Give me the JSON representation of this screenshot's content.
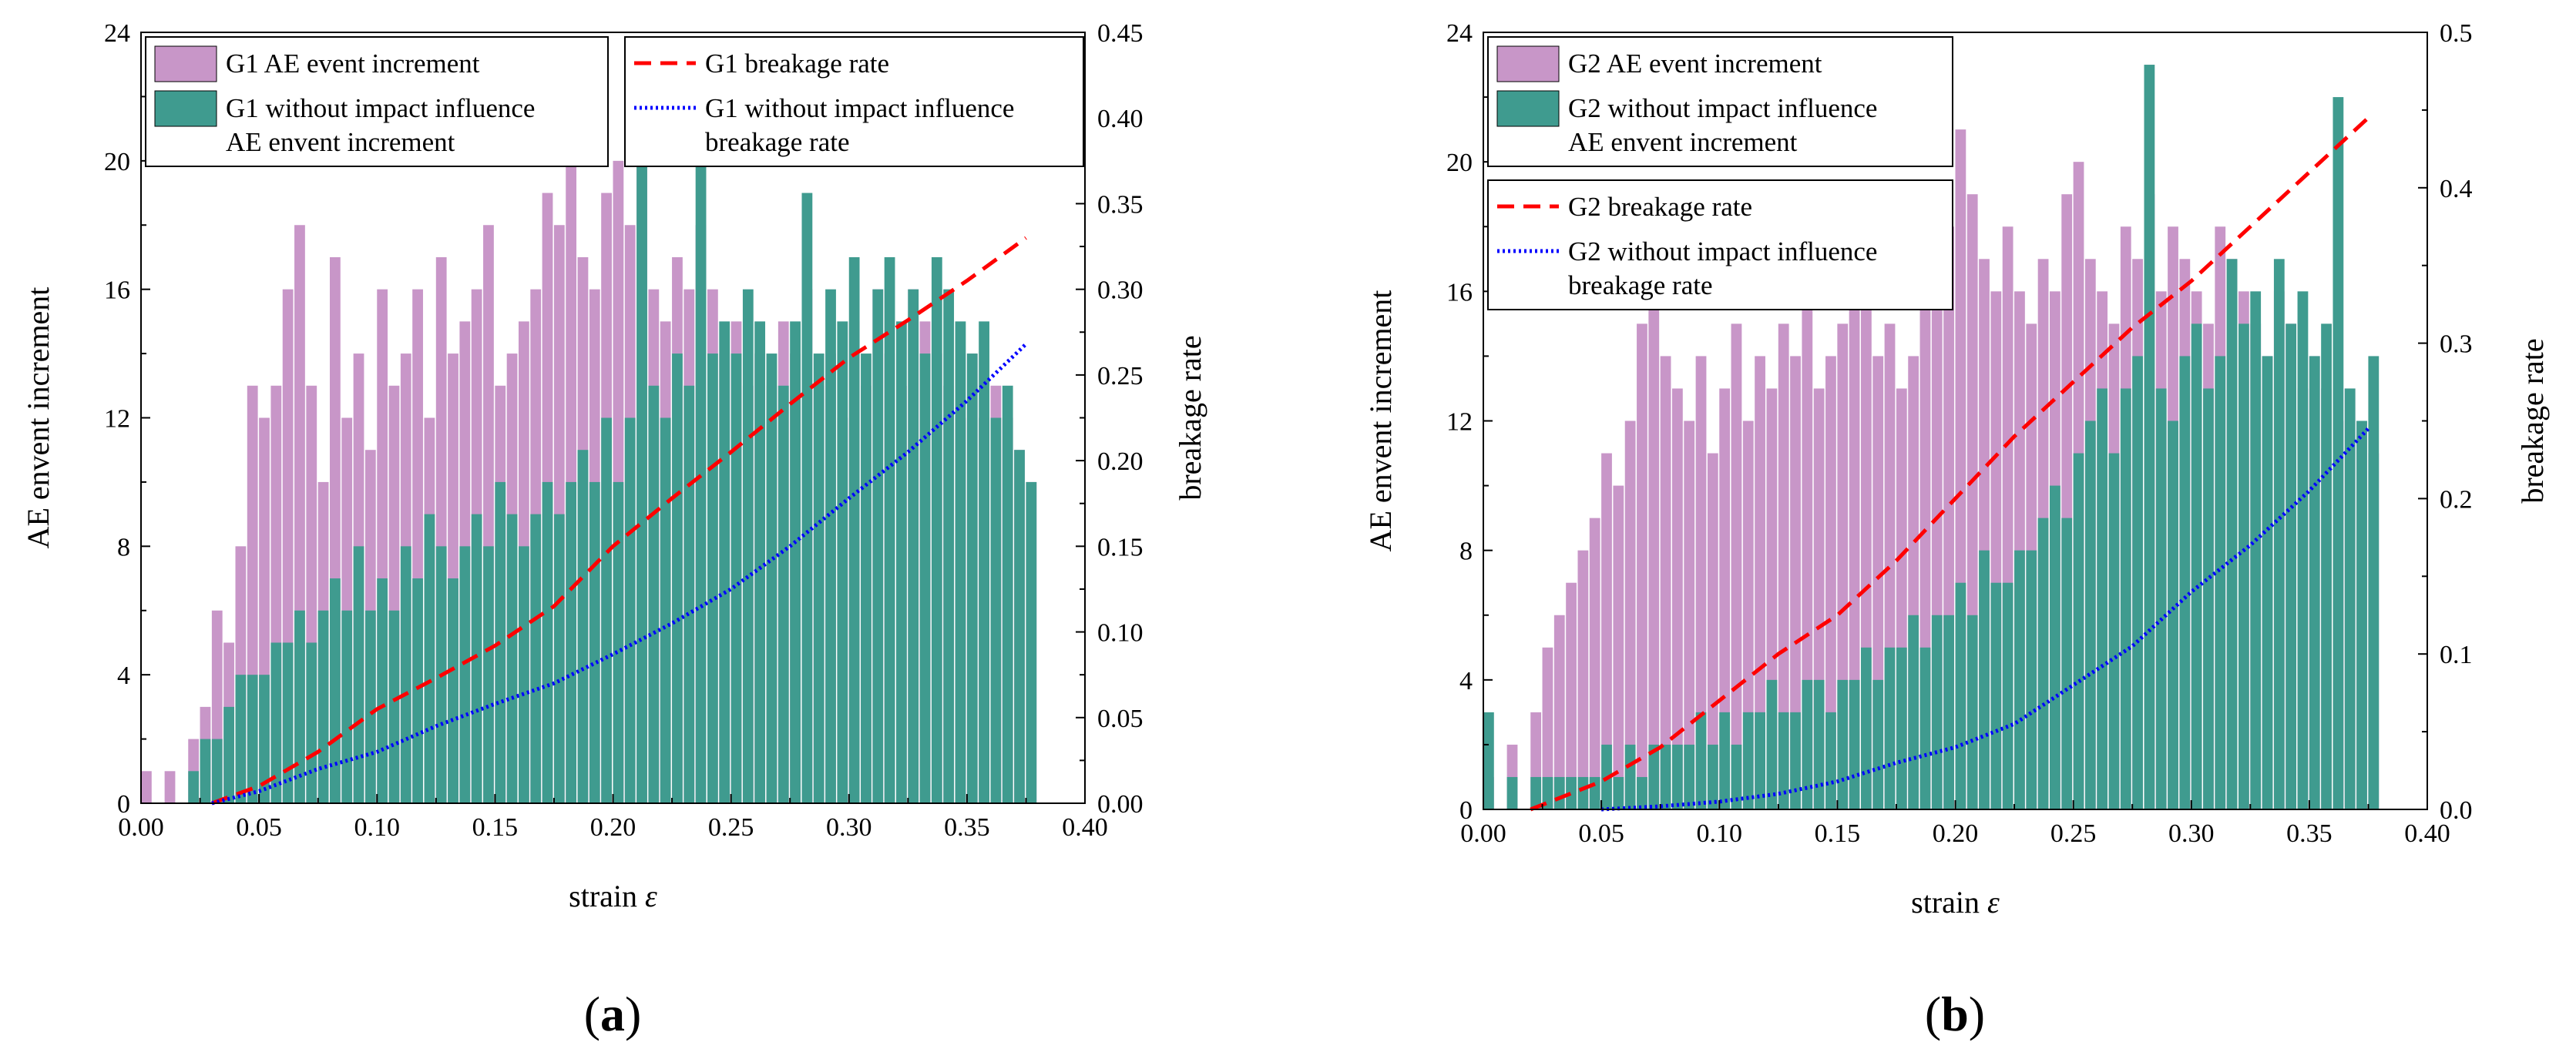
{
  "chart_data": [
    {
      "type": "bar",
      "panel_label": "a",
      "xlabel": "strain",
      "xlabel_symbol": "ε",
      "ylabel": "AE envent increment",
      "y2label": "breakage rate",
      "xlim": [
        0,
        0.4
      ],
      "ylim": [
        0,
        24
      ],
      "y2lim": [
        0,
        0.45
      ],
      "xticks": [
        "0.00",
        "0.05",
        "0.10",
        "0.15",
        "0.20",
        "0.25",
        "0.30",
        "0.35",
        "0.40"
      ],
      "yticks": [
        "0",
        "4",
        "8",
        "12",
        "16",
        "20",
        "24"
      ],
      "y2ticks": [
        "0.00",
        "0.05",
        "0.10",
        "0.15",
        "0.20",
        "0.25",
        "0.30",
        "0.35",
        "0.40",
        "0.45"
      ],
      "legends": [
        [
          {
            "label": "G1 AE event increment",
            "color": "#c896c8"
          },
          {
            "label": "G1 without impact influence",
            "label2": "AE envent increment",
            "color": "#3f9b8f"
          }
        ],
        [
          {
            "label": "G1 breakage rate",
            "color": "#ff0000"
          },
          {
            "label": "G1 without impact influence",
            "label2": "breakage rate",
            "color": "#0000ff"
          }
        ]
      ],
      "bar_series": [
        {
          "name": "G1 AE event increment",
          "color": "#c896c8",
          "x": [
            0.0,
            0.01,
            0.02,
            0.025,
            0.03,
            0.035,
            0.04,
            0.045,
            0.05,
            0.055,
            0.06,
            0.065,
            0.07,
            0.075,
            0.08,
            0.085,
            0.09,
            0.095,
            0.1,
            0.105,
            0.11,
            0.115,
            0.12,
            0.125,
            0.13,
            0.135,
            0.14,
            0.145,
            0.15,
            0.155,
            0.16,
            0.165,
            0.17,
            0.175,
            0.18,
            0.185,
            0.19,
            0.195,
            0.2,
            0.205,
            0.21,
            0.215,
            0.22,
            0.225,
            0.23,
            0.235,
            0.24,
            0.245,
            0.25,
            0.255,
            0.26,
            0.265,
            0.27,
            0.275,
            0.28,
            0.285,
            0.29,
            0.295,
            0.3,
            0.305,
            0.31,
            0.315,
            0.32,
            0.325,
            0.33,
            0.335,
            0.34,
            0.345,
            0.35,
            0.355,
            0.36,
            0.365,
            0.37,
            0.375
          ],
          "values": [
            1,
            1,
            2,
            3,
            6,
            5,
            8,
            13,
            12,
            13,
            16,
            18,
            13,
            10,
            17,
            12,
            14,
            11,
            16,
            13,
            14,
            16,
            12,
            17,
            14,
            15,
            16,
            18,
            13,
            14,
            15,
            16,
            19,
            18,
            20,
            17,
            16,
            19,
            20,
            18,
            21,
            16,
            15,
            17,
            16,
            18,
            16,
            14,
            15,
            13,
            14,
            13,
            15,
            14,
            16,
            13,
            14,
            12,
            15,
            13,
            16,
            14,
            13,
            16,
            15,
            14,
            13,
            12,
            14,
            12,
            13,
            12,
            11,
            10
          ]
        },
        {
          "name": "G1 without impact influence AE envent increment",
          "color": "#3f9b8f",
          "x": [
            0.0,
            0.01,
            0.02,
            0.025,
            0.03,
            0.035,
            0.04,
            0.045,
            0.05,
            0.055,
            0.06,
            0.065,
            0.07,
            0.075,
            0.08,
            0.085,
            0.09,
            0.095,
            0.1,
            0.105,
            0.11,
            0.115,
            0.12,
            0.125,
            0.13,
            0.135,
            0.14,
            0.145,
            0.15,
            0.155,
            0.16,
            0.165,
            0.17,
            0.175,
            0.18,
            0.185,
            0.19,
            0.195,
            0.2,
            0.205,
            0.21,
            0.215,
            0.22,
            0.225,
            0.23,
            0.235,
            0.24,
            0.245,
            0.25,
            0.255,
            0.26,
            0.265,
            0.27,
            0.275,
            0.28,
            0.285,
            0.29,
            0.295,
            0.3,
            0.305,
            0.31,
            0.315,
            0.32,
            0.325,
            0.33,
            0.335,
            0.34,
            0.345,
            0.35,
            0.355,
            0.36,
            0.365,
            0.37,
            0.375
          ],
          "values": [
            0,
            0,
            1,
            2,
            2,
            3,
            4,
            4,
            4,
            5,
            5,
            6,
            5,
            6,
            7,
            6,
            8,
            6,
            7,
            6,
            8,
            7,
            9,
            8,
            7,
            8,
            9,
            8,
            10,
            9,
            8,
            9,
            10,
            9,
            10,
            11,
            10,
            12,
            10,
            12,
            22,
            13,
            12,
            14,
            13,
            20,
            14,
            15,
            14,
            16,
            15,
            14,
            13,
            15,
            19,
            14,
            16,
            15,
            17,
            14,
            16,
            17,
            15,
            16,
            14,
            17,
            16,
            15,
            14,
            15,
            12,
            13,
            11,
            10
          ]
        }
      ],
      "line_series": [
        {
          "name": "G1 breakage rate",
          "color": "#ff0000",
          "style": "dash",
          "x": [
            0.03,
            0.05,
            0.075,
            0.1,
            0.125,
            0.15,
            0.175,
            0.2,
            0.225,
            0.25,
            0.275,
            0.3,
            0.325,
            0.35,
            0.375
          ],
          "values": [
            0.0,
            0.01,
            0.03,
            0.055,
            0.073,
            0.092,
            0.115,
            0.15,
            0.178,
            0.205,
            0.233,
            0.26,
            0.282,
            0.305,
            0.33
          ]
        },
        {
          "name": "G1 without impact influence breakage rate",
          "color": "#0000ff",
          "style": "dot",
          "x": [
            0.03,
            0.05,
            0.075,
            0.1,
            0.125,
            0.15,
            0.175,
            0.2,
            0.225,
            0.25,
            0.275,
            0.3,
            0.325,
            0.35,
            0.375
          ],
          "values": [
            0.0,
            0.007,
            0.02,
            0.03,
            0.045,
            0.058,
            0.07,
            0.087,
            0.105,
            0.125,
            0.15,
            0.178,
            0.205,
            0.235,
            0.268
          ]
        }
      ]
    },
    {
      "type": "bar",
      "panel_label": "b",
      "xlabel": "strain",
      "xlabel_symbol": "ε",
      "ylabel": "AE envent increment",
      "y2label": "breakage rate",
      "xlim": [
        0,
        0.4
      ],
      "ylim": [
        0,
        24
      ],
      "y2lim": [
        0,
        0.5
      ],
      "xticks": [
        "0.00",
        "0.05",
        "0.10",
        "0.15",
        "0.20",
        "0.25",
        "0.30",
        "0.35",
        "0.40"
      ],
      "yticks": [
        "0",
        "4",
        "8",
        "12",
        "16",
        "20",
        "24"
      ],
      "y2ticks": [
        "0.0",
        "0.1",
        "0.2",
        "0.3",
        "0.4",
        "0.5"
      ],
      "legends": [
        [
          {
            "label": "G2 AE event increment",
            "color": "#c896c8"
          },
          {
            "label": "G2 without impact influence",
            "label2": "AE envent increment",
            "color": "#3f9b8f"
          }
        ],
        [
          {
            "label": "G2 breakage rate",
            "color": "#ff0000"
          },
          {
            "label": "G2 without impact influence",
            "label2": "breakage rate",
            "color": "#0000ff"
          }
        ]
      ],
      "bar_series": [
        {
          "name": "G2 AE event increment",
          "color": "#c896c8",
          "x": [
            0.0,
            0.01,
            0.02,
            0.025,
            0.03,
            0.035,
            0.04,
            0.045,
            0.05,
            0.055,
            0.06,
            0.065,
            0.07,
            0.075,
            0.08,
            0.085,
            0.09,
            0.095,
            0.1,
            0.105,
            0.11,
            0.115,
            0.12,
            0.125,
            0.13,
            0.135,
            0.14,
            0.145,
            0.15,
            0.155,
            0.16,
            0.165,
            0.17,
            0.175,
            0.18,
            0.185,
            0.19,
            0.195,
            0.2,
            0.205,
            0.21,
            0.215,
            0.22,
            0.225,
            0.23,
            0.235,
            0.24,
            0.245,
            0.25,
            0.255,
            0.26,
            0.265,
            0.27,
            0.275,
            0.28,
            0.285,
            0.29,
            0.295,
            0.3,
            0.305,
            0.31,
            0.315,
            0.32,
            0.325,
            0.33,
            0.335,
            0.34,
            0.345,
            0.35,
            0.355,
            0.36,
            0.365,
            0.37,
            0.375
          ],
          "values": [
            1,
            2,
            3,
            5,
            6,
            7,
            8,
            9,
            11,
            10,
            12,
            15,
            16,
            14,
            13,
            12,
            14,
            11,
            13,
            15,
            12,
            14,
            13,
            15,
            14,
            16,
            13,
            14,
            15,
            17,
            16,
            14,
            15,
            13,
            14,
            16,
            17,
            18,
            21,
            19,
            17,
            16,
            18,
            16,
            15,
            17,
            16,
            19,
            20,
            17,
            16,
            15,
            18,
            17,
            19,
            16,
            18,
            17,
            16,
            15,
            18,
            17,
            16,
            15,
            14,
            16,
            15,
            13,
            14,
            13,
            12,
            13,
            12,
            11
          ]
        },
        {
          "name": "G2 without impact influence AE envent increment",
          "color": "#3f9b8f",
          "x": [
            0.0,
            0.01,
            0.02,
            0.025,
            0.03,
            0.035,
            0.04,
            0.045,
            0.05,
            0.055,
            0.06,
            0.065,
            0.07,
            0.075,
            0.08,
            0.085,
            0.09,
            0.095,
            0.1,
            0.105,
            0.11,
            0.115,
            0.12,
            0.125,
            0.13,
            0.135,
            0.14,
            0.145,
            0.15,
            0.155,
            0.16,
            0.165,
            0.17,
            0.175,
            0.18,
            0.185,
            0.19,
            0.195,
            0.2,
            0.205,
            0.21,
            0.215,
            0.22,
            0.225,
            0.23,
            0.235,
            0.24,
            0.245,
            0.25,
            0.255,
            0.26,
            0.265,
            0.27,
            0.275,
            0.28,
            0.285,
            0.29,
            0.295,
            0.3,
            0.305,
            0.31,
            0.315,
            0.32,
            0.325,
            0.33,
            0.335,
            0.34,
            0.345,
            0.35,
            0.355,
            0.36,
            0.365,
            0.37,
            0.375
          ],
          "values": [
            3,
            1,
            1,
            1,
            1,
            1,
            1,
            1,
            2,
            1,
            2,
            1,
            2,
            2,
            2,
            2,
            3,
            2,
            3,
            2,
            3,
            3,
            4,
            3,
            3,
            4,
            4,
            3,
            4,
            4,
            5,
            4,
            5,
            5,
            6,
            5,
            6,
            6,
            7,
            6,
            8,
            7,
            7,
            8,
            8,
            9,
            10,
            9,
            11,
            12,
            13,
            11,
            13,
            14,
            23,
            13,
            12,
            14,
            15,
            13,
            14,
            17,
            15,
            16,
            14,
            17,
            15,
            16,
            14,
            15,
            22,
            13,
            12,
            14
          ]
        }
      ],
      "line_series": [
        {
          "name": "G2 breakage rate",
          "color": "#ff0000",
          "style": "dash",
          "x": [
            0.02,
            0.05,
            0.075,
            0.1,
            0.125,
            0.15,
            0.175,
            0.2,
            0.225,
            0.25,
            0.275,
            0.3,
            0.325,
            0.35,
            0.375
          ],
          "values": [
            0.0,
            0.018,
            0.04,
            0.07,
            0.1,
            0.125,
            0.16,
            0.2,
            0.24,
            0.275,
            0.31,
            0.34,
            0.375,
            0.41,
            0.445
          ]
        },
        {
          "name": "G2 without impact influence breakage rate",
          "color": "#0000ff",
          "style": "dot",
          "x": [
            0.05,
            0.075,
            0.1,
            0.125,
            0.15,
            0.175,
            0.2,
            0.225,
            0.25,
            0.275,
            0.3,
            0.325,
            0.35,
            0.375
          ],
          "values": [
            0.0,
            0.002,
            0.005,
            0.01,
            0.018,
            0.03,
            0.04,
            0.055,
            0.08,
            0.105,
            0.14,
            0.17,
            0.205,
            0.245
          ]
        }
      ]
    }
  ]
}
